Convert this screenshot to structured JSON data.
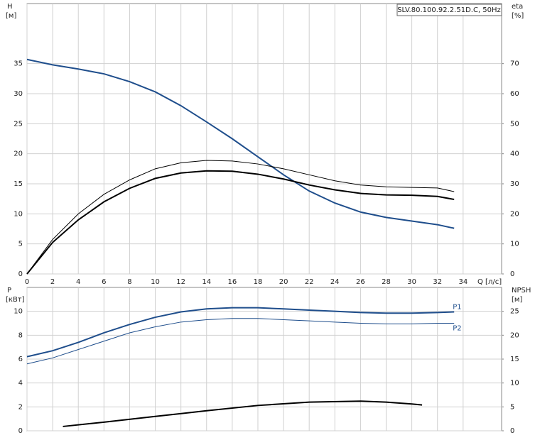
{
  "chart_data": [
    {
      "type": "line",
      "title": "SLV.80.100.92.2.51D.C, 50Hz",
      "ylabel": "H",
      "yunit": "[м]",
      "y2label": "eta",
      "y2unit": "[%]",
      "xlabel": "Q [л/с]",
      "xlim": [
        0,
        37
      ],
      "xticks": [
        0,
        2,
        4,
        6,
        8,
        10,
        12,
        14,
        16,
        18,
        20,
        22,
        24,
        26,
        28,
        30,
        32,
        34
      ],
      "ylim": [
        0,
        45
      ],
      "yticks": [
        0,
        5,
        10,
        15,
        20,
        25,
        30,
        35
      ],
      "y2lim": [
        0,
        90
      ],
      "y2ticks": [
        0,
        10,
        20,
        30,
        40,
        50,
        60,
        70
      ],
      "grid": true,
      "series": [
        {
          "color": "#1f4e8c",
          "width": 2,
          "x": [
            0,
            2,
            4,
            6,
            8,
            10,
            12,
            14,
            16,
            18,
            20,
            22,
            24,
            26,
            28,
            30,
            32,
            33.3
          ],
          "values": [
            35.7,
            34.8,
            34.1,
            33.3,
            32,
            30.3,
            28,
            25.3,
            22.5,
            19.5,
            16.5,
            13.8,
            11.8,
            10.3,
            9.4,
            8.8,
            8.2,
            7.6
          ]
        },
        {
          "color": "#000000",
          "width": 2,
          "axis": "y2",
          "x": [
            0,
            2,
            4,
            6,
            8,
            10,
            12,
            14,
            16,
            18,
            20,
            22,
            24,
            26,
            28,
            30,
            32,
            33.3
          ],
          "values": [
            0,
            10.5,
            18,
            24,
            28.5,
            31.8,
            33.6,
            34.3,
            34.2,
            33.2,
            31.6,
            29.6,
            28,
            26.8,
            26.3,
            26.2,
            25.8,
            24.8
          ]
        },
        {
          "color": "#000000",
          "width": 1,
          "axis": "y2",
          "x": [
            0,
            2,
            4,
            6,
            8,
            10,
            12,
            14,
            16,
            18,
            20,
            22,
            24,
            26,
            28,
            30,
            32,
            33.3
          ],
          "values": [
            0,
            11.5,
            20,
            26.5,
            31.3,
            35,
            37,
            37.8,
            37.6,
            36.6,
            35,
            33,
            31,
            29.6,
            29,
            28.8,
            28.6,
            27.4
          ]
        }
      ]
    },
    {
      "type": "line",
      "ylabel": "P",
      "yunit": "[кВт]",
      "y2label": "NPSH",
      "y2unit": "[м]",
      "xlim": [
        0,
        37
      ],
      "ylim": [
        0,
        12
      ],
      "yticks": [
        0,
        2,
        4,
        6,
        8,
        10
      ],
      "y2lim": [
        0,
        30
      ],
      "y2ticks": [
        0,
        5,
        10,
        15,
        20,
        25
      ],
      "grid": true,
      "series": [
        {
          "name": "P1",
          "color": "#1f4e8c",
          "width": 2,
          "x": [
            0,
            2,
            4,
            6,
            8,
            10,
            12,
            14,
            16,
            18,
            20,
            22,
            24,
            26,
            28,
            30,
            32,
            33.3
          ],
          "values": [
            6.2,
            6.7,
            7.4,
            8.2,
            8.9,
            9.5,
            9.95,
            10.2,
            10.3,
            10.3,
            10.2,
            10.1,
            10,
            9.9,
            9.85,
            9.85,
            9.9,
            9.95
          ]
        },
        {
          "name": "P2",
          "color": "#1f4e8c",
          "width": 1,
          "x": [
            0,
            2,
            4,
            6,
            8,
            10,
            12,
            14,
            16,
            18,
            20,
            22,
            24,
            26,
            28,
            30,
            32,
            33.3
          ],
          "values": [
            5.6,
            6.1,
            6.8,
            7.5,
            8.2,
            8.7,
            9.1,
            9.3,
            9.4,
            9.4,
            9.3,
            9.2,
            9.1,
            9,
            8.95,
            8.95,
            9,
            9
          ]
        },
        {
          "color": "#000000",
          "width": 2,
          "axis": "y2",
          "x": [
            2.8,
            6,
            10,
            14,
            18,
            22,
            26,
            28,
            30,
            30.8
          ],
          "values": [
            0.9,
            1.8,
            3,
            4.2,
            5.3,
            6,
            6.2,
            6,
            5.6,
            5.4
          ]
        }
      ]
    }
  ]
}
